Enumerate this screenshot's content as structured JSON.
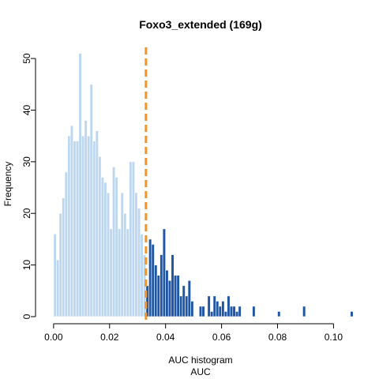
{
  "chart_data": {
    "type": "bar",
    "title": "Foxo3_extended (169g)",
    "xlabel": "AUC histogram",
    "xlabel2": "AUC",
    "ylabel": "Frequency",
    "xlim": [
      -0.0025,
      0.1075
    ],
    "ylim": [
      0,
      52
    ],
    "bin_width": 0.001,
    "x_ticks": [
      0.0,
      0.02,
      0.04,
      0.06,
      0.08,
      0.1
    ],
    "x_tick_labels": [
      "0.00",
      "0.02",
      "0.04",
      "0.06",
      "0.08",
      "0.10"
    ],
    "y_ticks": [
      0,
      10,
      20,
      30,
      40,
      50
    ],
    "y_tick_labels": [
      "0",
      "10",
      "20",
      "30",
      "40",
      "50"
    ],
    "threshold": 0.033,
    "colors": {
      "below_threshold": "#BDD7F1",
      "above_threshold": "#1F56A3",
      "threshold_line": "#F7921E"
    },
    "grid": false,
    "x": [
      0.0,
      0.001,
      0.002,
      0.003,
      0.004,
      0.005,
      0.006,
      0.007,
      0.008,
      0.009,
      0.01,
      0.011,
      0.012,
      0.013,
      0.014,
      0.015,
      0.016,
      0.017,
      0.018,
      0.019,
      0.02,
      0.021,
      0.022,
      0.023,
      0.024,
      0.025,
      0.026,
      0.027,
      0.028,
      0.029,
      0.03,
      0.031,
      0.032,
      0.033,
      0.034,
      0.035,
      0.036,
      0.037,
      0.038,
      0.039,
      0.04,
      0.041,
      0.042,
      0.043,
      0.044,
      0.045,
      0.046,
      0.047,
      0.048,
      0.049,
      0.05,
      0.051,
      0.052,
      0.053,
      0.054,
      0.055,
      0.056,
      0.057,
      0.058,
      0.059,
      0.06,
      0.061,
      0.062,
      0.063,
      0.064,
      0.065,
      0.066,
      0.067,
      0.068,
      0.069,
      0.07,
      0.071,
      0.072,
      0.073,
      0.074,
      0.075,
      0.076,
      0.077,
      0.078,
      0.079,
      0.08,
      0.081,
      0.082,
      0.083,
      0.084,
      0.085,
      0.086,
      0.087,
      0.088,
      0.089,
      0.09,
      0.091,
      0.092,
      0.093,
      0.094,
      0.095,
      0.096,
      0.097,
      0.098,
      0.099,
      0.1,
      0.101,
      0.102,
      0.103,
      0.104,
      0.105,
      0.106
    ],
    "values": [
      16,
      11,
      20,
      23,
      28,
      35,
      37,
      34,
      34,
      51,
      35,
      38,
      35,
      45,
      34,
      36,
      31,
      27,
      26,
      24,
      17,
      29,
      27,
      17,
      24,
      20,
      17,
      30,
      30,
      24,
      21,
      16,
      12,
      6,
      15,
      14,
      10,
      8,
      12,
      17,
      9,
      7,
      12,
      8,
      8,
      4,
      6,
      4,
      7,
      3,
      0,
      0,
      2,
      2,
      0,
      4,
      1,
      4,
      3,
      2,
      3,
      1,
      4,
      2,
      2,
      1,
      2,
      0,
      0,
      0,
      0,
      2,
      0,
      0,
      0,
      0,
      0,
      0,
      0,
      0,
      1,
      0,
      0,
      0,
      0,
      0,
      0,
      0,
      0,
      2,
      0,
      0,
      0,
      0,
      0,
      0,
      0,
      0,
      0,
      0,
      0,
      0,
      0,
      0,
      0,
      0,
      1
    ]
  }
}
